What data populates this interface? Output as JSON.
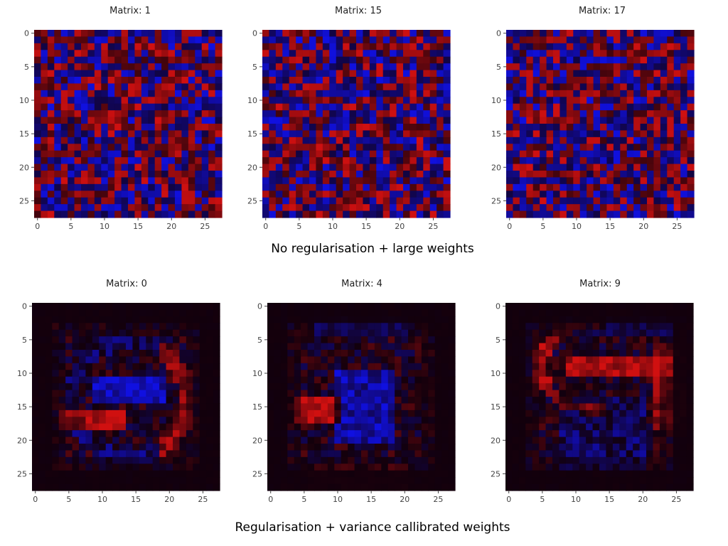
{
  "colors": {
    "positive": "#d01010",
    "negative": "#1010e0",
    "background": "#12000c"
  },
  "groups": [
    {
      "caption": "No regularisation + large weights"
    },
    {
      "caption": "Regularisation + variance callibrated weights"
    }
  ],
  "chart_data": [
    {
      "type": "heatmap",
      "title": "Matrix: 1",
      "rows": 28,
      "cols": 28,
      "style": "noisy",
      "seed": 1,
      "xticks": [
        0,
        5,
        10,
        15,
        20,
        25
      ],
      "yticks": [
        0,
        5,
        10,
        15,
        20,
        25
      ],
      "xlim": [
        -0.5,
        27.5
      ],
      "ylim": [
        27.5,
        -0.5
      ]
    },
    {
      "type": "heatmap",
      "title": "Matrix: 15",
      "rows": 28,
      "cols": 28,
      "style": "noisy",
      "seed": 15,
      "xticks": [
        0,
        5,
        10,
        15,
        20,
        25
      ],
      "yticks": [
        0,
        5,
        10,
        15,
        20,
        25
      ],
      "xlim": [
        -0.5,
        27.5
      ],
      "ylim": [
        27.5,
        -0.5
      ]
    },
    {
      "type": "heatmap",
      "title": "Matrix: 17",
      "rows": 28,
      "cols": 28,
      "style": "noisy",
      "seed": 17,
      "xticks": [
        0,
        5,
        10,
        15,
        20,
        25
      ],
      "yticks": [
        0,
        5,
        10,
        15,
        20,
        25
      ],
      "xlim": [
        -0.5,
        27.5
      ],
      "ylim": [
        27.5,
        -0.5
      ]
    },
    {
      "type": "heatmap",
      "title": "Matrix: 0",
      "rows": 28,
      "cols": 28,
      "style": "smooth-digit-0",
      "seed": 100,
      "xticks": [
        0,
        5,
        10,
        15,
        20,
        25
      ],
      "yticks": [
        0,
        5,
        10,
        15,
        20,
        25
      ],
      "xlim": [
        -0.5,
        27.5
      ],
      "ylim": [
        27.5,
        -0.5
      ]
    },
    {
      "type": "heatmap",
      "title": "Matrix: 4",
      "rows": 28,
      "cols": 28,
      "style": "smooth-digit-4",
      "seed": 104,
      "xticks": [
        0,
        5,
        10,
        15,
        20,
        25
      ],
      "yticks": [
        0,
        5,
        10,
        15,
        20,
        25
      ],
      "xlim": [
        -0.5,
        27.5
      ],
      "ylim": [
        27.5,
        -0.5
      ]
    },
    {
      "type": "heatmap",
      "title": "Matrix: 9",
      "rows": 28,
      "cols": 28,
      "style": "smooth-digit-9",
      "seed": 109,
      "xticks": [
        0,
        5,
        10,
        15,
        20,
        25
      ],
      "yticks": [
        0,
        5,
        10,
        15,
        20,
        25
      ],
      "xlim": [
        -0.5,
        27.5
      ],
      "ylim": [
        27.5,
        -0.5
      ]
    }
  ]
}
